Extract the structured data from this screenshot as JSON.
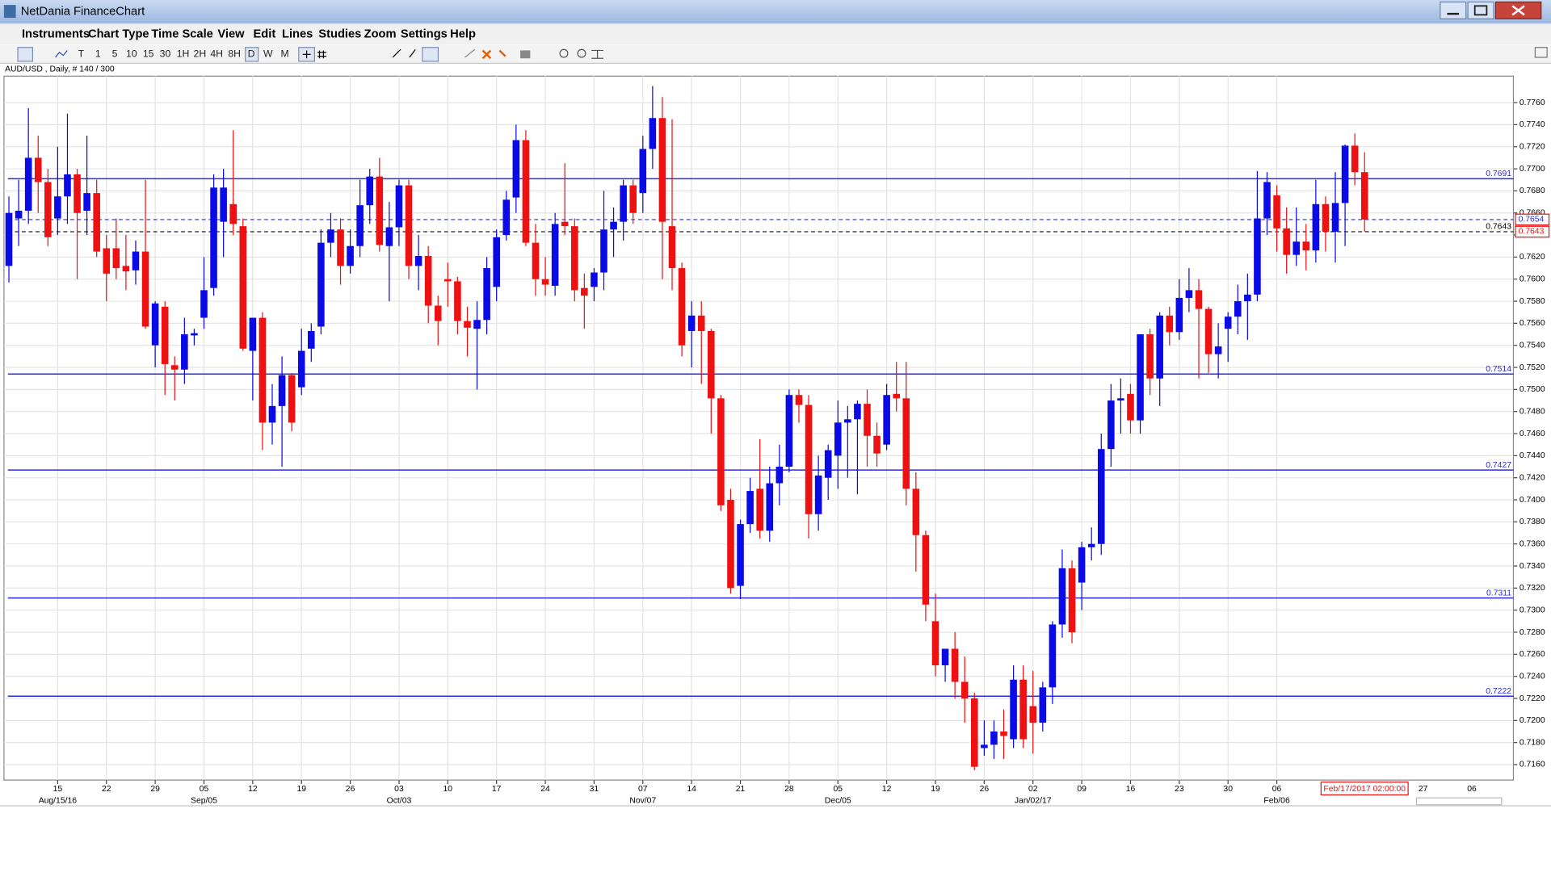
{
  "window": {
    "title": "NetDania FinanceChart"
  },
  "menu": [
    "Instruments",
    "Chart Type",
    "Time Scale",
    "View",
    "Edit",
    "Lines",
    "Studies",
    "Zoom",
    "Settings",
    "Help"
  ],
  "toolbar": [
    "T",
    "1",
    "5",
    "10",
    "15",
    "30",
    "1H",
    "2H",
    "4H",
    "8H",
    "D",
    "W",
    "M"
  ],
  "info": "AUD/USD , Daily, # 140 / 300",
  "chart_data": {
    "type": "candlestick",
    "up_color": "#0a0ae6",
    "down_color": "#ee1111",
    "line_color": "#2a2ae0",
    "grid": true,
    "ylim": [
      0.7146,
      0.7784
    ],
    "yticks": [
      {
        "value": 0.716,
        "label": "0.7160"
      },
      {
        "value": 0.718,
        "label": "0.7180"
      },
      {
        "value": 0.72,
        "label": "0.7200"
      },
      {
        "value": 0.722,
        "label": "0.7220"
      },
      {
        "value": 0.724,
        "label": "0.7240"
      },
      {
        "value": 0.726,
        "label": "0.7260"
      },
      {
        "value": 0.728,
        "label": "0.7280"
      },
      {
        "value": 0.73,
        "label": "0.7300"
      },
      {
        "value": 0.732,
        "label": "0.7320"
      },
      {
        "value": 0.734,
        "label": "0.7340"
      },
      {
        "value": 0.736,
        "label": "0.7360"
      },
      {
        "value": 0.738,
        "label": "0.7380"
      },
      {
        "value": 0.74,
        "label": "0.7400"
      },
      {
        "value": 0.742,
        "label": "0.7420"
      },
      {
        "value": 0.744,
        "label": "0.7440"
      },
      {
        "value": 0.746,
        "label": "0.7460"
      },
      {
        "value": 0.748,
        "label": "0.7480"
      },
      {
        "value": 0.75,
        "label": "0.7500"
      },
      {
        "value": 0.752,
        "label": "0.7520"
      },
      {
        "value": 0.754,
        "label": "0.7540"
      },
      {
        "value": 0.756,
        "label": "0.7560"
      },
      {
        "value": 0.758,
        "label": "0.7580"
      },
      {
        "value": 0.76,
        "label": "0.7600"
      },
      {
        "value": 0.762,
        "label": "0.7620"
      },
      {
        "value": 0.764,
        "label": "0.7640"
      },
      {
        "value": 0.766,
        "label": "0.7660"
      },
      {
        "value": 0.768,
        "label": "0.7680"
      },
      {
        "value": 0.77,
        "label": "0.7700"
      },
      {
        "value": 0.772,
        "label": "0.7720"
      },
      {
        "value": 0.774,
        "label": "0.7740"
      },
      {
        "value": 0.776,
        "label": "0.7760"
      }
    ],
    "categories": [
      null,
      null,
      null,
      null,
      null,
      "15",
      null,
      null,
      null,
      null,
      "22",
      null,
      null,
      null,
      null,
      "29",
      null,
      null,
      null,
      null,
      "05",
      null,
      null,
      null,
      null,
      "12",
      null,
      null,
      null,
      null,
      "19",
      null,
      null,
      null,
      null,
      "26",
      null,
      null,
      null,
      null,
      "03",
      null,
      null,
      null,
      null,
      "10",
      null,
      null,
      null,
      null,
      "17",
      null,
      null,
      null,
      null,
      "24",
      null,
      null,
      null,
      null,
      "31",
      null,
      null,
      null,
      null,
      "07",
      null,
      null,
      null,
      null,
      "14",
      null,
      null,
      null,
      null,
      "21",
      null,
      null,
      null,
      null,
      "28",
      null,
      null,
      null,
      null,
      "05",
      null,
      null,
      null,
      null,
      "12",
      null,
      null,
      null,
      null,
      "19",
      null,
      null,
      null,
      null,
      "26",
      null,
      null,
      null,
      null,
      "02",
      null,
      null,
      null,
      null,
      "09",
      null,
      null,
      null,
      null,
      "16",
      null,
      null,
      null,
      null,
      "23",
      null,
      null,
      null,
      null,
      "30",
      null,
      null,
      null,
      null,
      "06",
      null,
      null,
      null,
      null,
      null,
      null,
      null,
      null,
      null
    ],
    "category_months": [
      null,
      null,
      null,
      null,
      null,
      "Aug/15/16",
      null,
      null,
      null,
      null,
      null,
      null,
      null,
      null,
      null,
      null,
      null,
      null,
      null,
      null,
      "Sep/05",
      null,
      null,
      null,
      null,
      null,
      null,
      null,
      null,
      null,
      null,
      null,
      null,
      null,
      null,
      null,
      null,
      null,
      null,
      null,
      "Oct/03",
      null,
      null,
      null,
      null,
      null,
      null,
      null,
      null,
      null,
      null,
      null,
      null,
      null,
      null,
      null,
      null,
      null,
      null,
      null,
      null,
      null,
      null,
      null,
      null,
      "Nov/07",
      null,
      null,
      null,
      null,
      null,
      null,
      null,
      null,
      null,
      null,
      null,
      null,
      null,
      null,
      null,
      null,
      null,
      null,
      null,
      "Dec/05",
      null,
      null,
      null,
      null,
      null,
      null,
      null,
      null,
      null,
      null,
      null,
      null,
      null,
      null,
      null,
      null,
      null,
      null,
      null,
      "Jan/02/17",
      null,
      null,
      null,
      null,
      null,
      null,
      null,
      null,
      null,
      null,
      null,
      null,
      null,
      null,
      null,
      null,
      null,
      null,
      null,
      null,
      null,
      null,
      null,
      null,
      "Feb/06",
      null,
      null,
      null,
      null,
      null,
      null,
      null,
      null,
      null
    ],
    "future_labels": [
      "27",
      "06"
    ],
    "cursor_label": "Feb/17/2017 02:00:00",
    "open": [
      0.7612,
      0.7655,
      0.7662,
      0.771,
      0.7688,
      0.7655,
      0.7675,
      0.7695,
      0.7662,
      0.7678,
      0.7628,
      0.7628,
      0.7612,
      0.7608,
      0.7625,
      0.754,
      0.7575,
      0.7522,
      0.7518,
      0.7549,
      0.7565,
      0.7592,
      0.7652,
      0.7668,
      0.7648,
      0.7535,
      0.7565,
      0.747,
      0.7485,
      0.7513,
      0.7502,
      0.7537,
      0.7557,
      0.7633,
      0.7645,
      0.7612,
      0.763,
      0.7667,
      0.7693,
      0.763,
      0.7647,
      0.7685,
      0.7612,
      0.7621,
      0.7576,
      0.76,
      0.7598,
      0.7562,
      0.7555,
      0.7563,
      0.7593,
      0.764,
      0.7674,
      0.7726,
      0.7633,
      0.76,
      0.7594,
      0.7652,
      0.7648,
      0.7592,
      0.7593,
      0.7606,
      0.7645,
      0.7652,
      0.7685,
      0.7678,
      0.7718,
      0.7746,
      0.7648,
      0.761,
      0.7553,
      0.7567,
      0.7553,
      0.7492,
      0.74,
      0.7322,
      0.7378,
      0.741,
      0.7372,
      0.7415,
      0.743,
      0.7495,
      0.7486,
      0.7387,
      0.742,
      0.744,
      0.747,
      0.7473,
      0.7487,
      0.7458,
      0.745,
      0.7496,
      0.7492,
      0.741,
      0.7368,
      0.729,
      0.725,
      0.7265,
      0.7235,
      0.722,
      0.7175,
      0.7178,
      0.719,
      0.7183,
      0.7237,
      0.7213,
      0.7198,
      0.723,
      0.7287,
      0.7338,
      0.7325,
      0.7357,
      0.736,
      0.7446,
      0.749,
      0.7496,
      0.7472,
      0.755,
      0.751,
      0.7567,
      0.7552,
      0.7583,
      0.759,
      0.7573,
      0.7532,
      0.7555,
      0.7566,
      0.758,
      0.7586,
      0.7655,
      0.7676,
      0.7646,
      0.7622,
      0.7634,
      0.7626,
      0.7668,
      0.7643,
      0.7669,
      0.7721,
      0.7697
    ],
    "high": [
      0.7675,
      0.769,
      0.7755,
      0.773,
      0.77,
      0.772,
      0.775,
      0.77,
      0.773,
      0.769,
      0.764,
      0.7655,
      0.764,
      0.7635,
      0.769,
      0.758,
      0.758,
      0.753,
      0.7565,
      0.7555,
      0.762,
      0.7695,
      0.77,
      0.7735,
      0.7655,
      0.7565,
      0.757,
      0.7505,
      0.753,
      0.7515,
      0.7555,
      0.756,
      0.7645,
      0.766,
      0.7655,
      0.7645,
      0.769,
      0.77,
      0.771,
      0.767,
      0.769,
      0.769,
      0.764,
      0.763,
      0.7585,
      0.7615,
      0.7602,
      0.7575,
      0.758,
      0.762,
      0.7645,
      0.768,
      0.774,
      0.7735,
      0.765,
      0.762,
      0.766,
      0.7705,
      0.7655,
      0.7605,
      0.761,
      0.768,
      0.7665,
      0.769,
      0.769,
      0.773,
      0.7775,
      0.7765,
      0.7745,
      0.7615,
      0.758,
      0.758,
      0.7555,
      0.7495,
      0.741,
      0.7382,
      0.742,
      0.7455,
      0.743,
      0.745,
      0.75,
      0.75,
      0.7495,
      0.744,
      0.745,
      0.749,
      0.7485,
      0.749,
      0.75,
      0.747,
      0.7505,
      0.7525,
      0.7525,
      0.7425,
      0.7372,
      0.7315,
      0.7265,
      0.728,
      0.7258,
      0.7225,
      0.72,
      0.72,
      0.721,
      0.725,
      0.725,
      0.7245,
      0.7235,
      0.729,
      0.7355,
      0.7345,
      0.7362,
      0.7375,
      0.746,
      0.7505,
      0.751,
      0.7505,
      0.755,
      0.7555,
      0.757,
      0.7575,
      0.76,
      0.761,
      0.76,
      0.7575,
      0.756,
      0.757,
      0.7595,
      0.7605,
      0.7698,
      0.7697,
      0.7685,
      0.7665,
      0.7665,
      0.765,
      0.769,
      0.7675,
      0.7697,
      0.7722,
      0.7732,
      0.7715
    ],
    "low": [
      0.7597,
      0.763,
      0.765,
      0.766,
      0.763,
      0.764,
      0.765,
      0.76,
      0.764,
      0.762,
      0.758,
      0.76,
      0.759,
      0.7595,
      0.7555,
      0.752,
      0.7495,
      0.749,
      0.7505,
      0.754,
      0.7555,
      0.7585,
      0.762,
      0.764,
      0.7535,
      0.749,
      0.7445,
      0.745,
      0.743,
      0.7462,
      0.7495,
      0.7525,
      0.755,
      0.762,
      0.7595,
      0.7605,
      0.762,
      0.765,
      0.7625,
      0.758,
      0.763,
      0.76,
      0.759,
      0.756,
      0.754,
      0.7575,
      0.755,
      0.753,
      0.75,
      0.755,
      0.758,
      0.7635,
      0.766,
      0.763,
      0.7585,
      0.7585,
      0.7585,
      0.764,
      0.758,
      0.7555,
      0.758,
      0.759,
      0.762,
      0.7635,
      0.765,
      0.766,
      0.77,
      0.76,
      0.759,
      0.753,
      0.752,
      0.7505,
      0.746,
      0.739,
      0.7315,
      0.731,
      0.737,
      0.7365,
      0.7362,
      0.7395,
      0.7425,
      0.747,
      0.7365,
      0.7372,
      0.74,
      0.741,
      0.742,
      0.7405,
      0.743,
      0.743,
      0.7445,
      0.748,
      0.7395,
      0.7335,
      0.729,
      0.724,
      0.7235,
      0.722,
      0.7198,
      0.7155,
      0.7168,
      0.7165,
      0.7165,
      0.7175,
      0.7175,
      0.717,
      0.719,
      0.7215,
      0.7275,
      0.727,
      0.73,
      0.7345,
      0.735,
      0.743,
      0.746,
      0.746,
      0.746,
      0.7495,
      0.7485,
      0.754,
      0.7545,
      0.757,
      0.751,
      0.7515,
      0.751,
      0.7525,
      0.755,
      0.7545,
      0.758,
      0.764,
      0.7625,
      0.7605,
      0.7612,
      0.7608,
      0.7615,
      0.7625,
      0.7615,
      0.763,
      0.7685,
      0.7643
    ],
    "close": [
      0.766,
      0.7662,
      0.771,
      0.7688,
      0.7638,
      0.7675,
      0.7695,
      0.766,
      0.7678,
      0.7625,
      0.7605,
      0.761,
      0.7607,
      0.7625,
      0.7557,
      0.7578,
      0.7523,
      0.7518,
      0.755,
      0.7551,
      0.759,
      0.7683,
      0.7683,
      0.765,
      0.7537,
      0.7565,
      0.747,
      0.7485,
      0.7513,
      0.747,
      0.7535,
      0.7553,
      0.7633,
      0.7645,
      0.7612,
      0.763,
      0.7667,
      0.7693,
      0.7631,
      0.7647,
      0.7685,
      0.7612,
      0.7621,
      0.7576,
      0.7562,
      0.7598,
      0.7562,
      0.7556,
      0.7563,
      0.761,
      0.7638,
      0.7672,
      0.7726,
      0.7633,
      0.76,
      0.7595,
      0.765,
      0.7648,
      0.759,
      0.7585,
      0.7606,
      0.7645,
      0.7652,
      0.7685,
      0.766,
      0.7718,
      0.7746,
      0.7652,
      0.761,
      0.754,
      0.7567,
      0.7553,
      0.7492,
      0.7395,
      0.732,
      0.7378,
      0.7408,
      0.7372,
      0.7415,
      0.743,
      0.7495,
      0.7486,
      0.7387,
      0.7422,
      0.7445,
      0.747,
      0.7473,
      0.7487,
      0.7458,
      0.7442,
      0.7495,
      0.7492,
      0.741,
      0.7368,
      0.7305,
      0.725,
      0.7265,
      0.7235,
      0.722,
      0.7158,
      0.7178,
      0.719,
      0.7186,
      0.7237,
      0.7183,
      0.7198,
      0.723,
      0.7287,
      0.7338,
      0.728,
      0.7357,
      0.736,
      0.7446,
      0.749,
      0.7492,
      0.7472,
      0.755,
      0.751,
      0.7567,
      0.7552,
      0.7583,
      0.759,
      0.7573,
      0.7532,
      0.7539,
      0.7566,
      0.758,
      0.7586,
      0.7655,
      0.7688,
      0.7646,
      0.7622,
      0.7634,
      0.7626,
      0.7668,
      0.7643,
      0.7669,
      0.7721,
      0.7697,
      0.7654
    ],
    "hlines": [
      0.7691,
      0.7514,
      0.7427,
      0.7311,
      0.7222
    ],
    "price_line": 0.7654,
    "marker_line": 0.7643
  }
}
